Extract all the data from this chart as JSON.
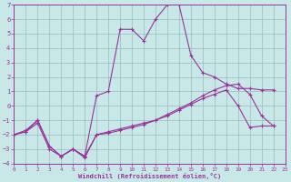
{
  "xlabel": "Windchill (Refroidissement éolien,°C)",
  "bg_color": "#c8e8e8",
  "grid_color": "#99bbbb",
  "line_color": "#993399",
  "xlim": [
    0,
    23
  ],
  "ylim": [
    -4,
    7
  ],
  "xticks": [
    0,
    1,
    2,
    3,
    4,
    5,
    6,
    7,
    8,
    9,
    10,
    11,
    12,
    13,
    14,
    15,
    16,
    17,
    18,
    19,
    20,
    21,
    22,
    23
  ],
  "yticks": [
    -4,
    -3,
    -2,
    -1,
    0,
    1,
    2,
    3,
    4,
    5,
    6,
    7
  ],
  "line1_x": [
    0,
    1,
    2,
    3,
    4,
    5,
    6,
    7,
    8,
    9,
    10,
    11,
    12,
    13,
    14,
    15,
    16,
    17,
    18,
    19,
    20,
    21,
    22
  ],
  "line1_y": [
    -2,
    -1.7,
    -1.0,
    -2.8,
    -3.5,
    -3.0,
    -3.6,
    -2.0,
    -1.8,
    -1.6,
    -1.4,
    -1.2,
    -1.0,
    -0.7,
    -0.3,
    0.1,
    0.5,
    0.8,
    1.1,
    0.0,
    -1.5,
    -1.4,
    -1.4
  ],
  "line2_x": [
    0,
    1,
    2,
    3,
    4,
    5,
    6,
    7,
    8,
    9,
    10,
    11,
    12,
    13,
    14,
    15,
    16,
    17,
    18,
    19,
    20,
    21,
    22
  ],
  "line2_y": [
    -2,
    -1.8,
    -1.2,
    -3.0,
    -3.5,
    -3.0,
    -3.5,
    -2.0,
    -1.9,
    -1.7,
    -1.5,
    -1.3,
    -1.0,
    -0.6,
    -0.2,
    0.2,
    0.7,
    1.1,
    1.4,
    1.5,
    0.8,
    -0.7,
    -1.4
  ],
  "line3_x": [
    0,
    1,
    2,
    3,
    4,
    5,
    6,
    7,
    8,
    9,
    10,
    11,
    12,
    13,
    14,
    15,
    16,
    17,
    18,
    19,
    20,
    21,
    22
  ],
  "line3_y": [
    -2,
    -1.8,
    -1.0,
    -2.8,
    -3.5,
    -3.0,
    -3.5,
    0.7,
    1.0,
    5.3,
    5.3,
    4.5,
    6.0,
    7.0,
    7.0,
    3.5,
    2.3,
    2.0,
    1.5,
    1.2,
    1.2,
    1.1,
    1.1
  ]
}
